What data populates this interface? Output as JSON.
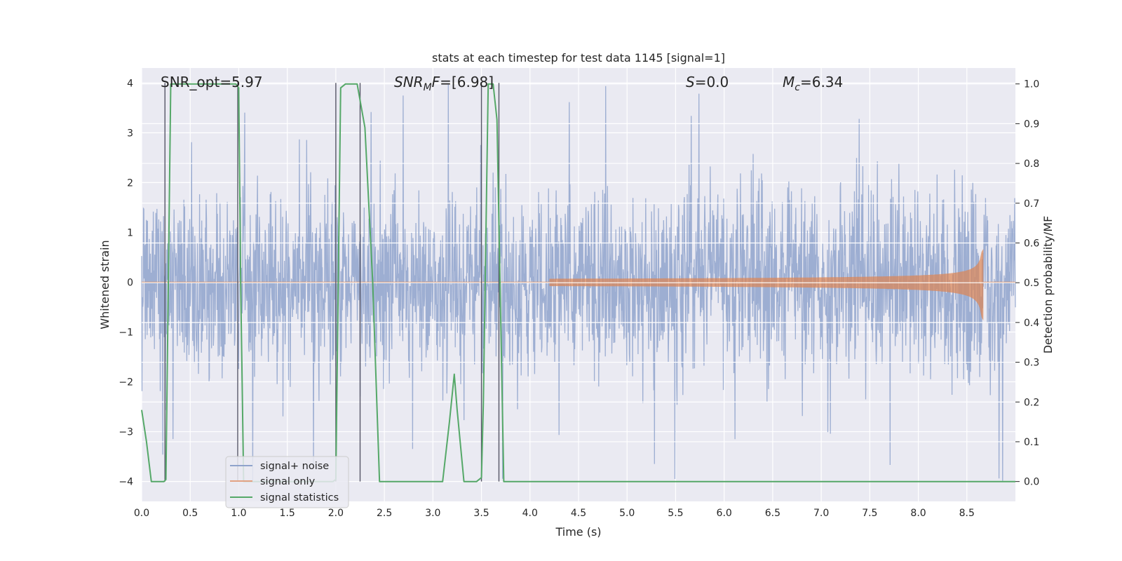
{
  "chart_data": {
    "type": "line",
    "title": "stats at each timestep for test data 1145 [signal=1]",
    "xlabel": "Time (s)",
    "ylabel": "Whitened strain",
    "ylabel_right": "Detection probability/MF",
    "xlim": [
      0.0,
      9.0
    ],
    "ylim": [
      -4.4,
      4.3
    ],
    "ylim_right": [
      -0.05,
      1.04
    ],
    "x_ticks": [
      "0.0",
      "0.5",
      "1.0",
      "1.5",
      "2.0",
      "2.5",
      "3.0",
      "3.5",
      "4.0",
      "4.5",
      "5.0",
      "5.5",
      "6.0",
      "6.5",
      "7.0",
      "7.5",
      "8.0",
      "8.5"
    ],
    "y_ticks": [
      "4",
      "3",
      "2",
      "1",
      "0",
      "−1",
      "−2",
      "−3",
      "−4"
    ],
    "y_ticks_right": [
      "1.0",
      "0.9",
      "0.8",
      "0.7",
      "0.6",
      "0.5",
      "0.4",
      "0.3",
      "0.2",
      "0.1",
      "0.0"
    ],
    "grid": true,
    "legend_position": "lower-left",
    "annotations": {
      "snr_opt": "SNR_opt=5.97",
      "snr_mf_main": "SNR",
      "snr_mf_sub": "M",
      "snr_mf_tail": "F",
      "snr_mf_value": "=[6.98]",
      "s_symbol": "S",
      "s_value": "=0.0",
      "mc_main": "M",
      "mc_sub": "c",
      "mc_value": "=6.34"
    },
    "series": [
      {
        "name": "signal+ noise",
        "color": "#8fa3cc",
        "kind": "noise",
        "noise_sigma": 0.9,
        "peak_max": 4.0,
        "peak_min": -4.0
      },
      {
        "name": "signal only",
        "color": "#dd8452",
        "kind": "chirp",
        "start_time": 4.2,
        "merger_time": 8.67,
        "peak_amplitude_positive": 0.65,
        "peak_amplitude_negative": -0.75
      },
      {
        "name": "signal statistics",
        "color": "#55a868",
        "axis": "right",
        "x": [
          0.0,
          0.05,
          0.1,
          0.2,
          0.23,
          0.25,
          0.3,
          0.35,
          0.5,
          0.7,
          0.97,
          1.0,
          1.02,
          1.05,
          1.5,
          1.95,
          1.97,
          2.0,
          2.05,
          2.1,
          2.22,
          2.3,
          2.38,
          2.45,
          2.5,
          2.8,
          3.1,
          3.17,
          3.22,
          3.25,
          3.32,
          3.45,
          3.5,
          3.52,
          3.57,
          3.62,
          3.66,
          3.73,
          3.8,
          4.5,
          6.0,
          8.0,
          9.0
        ],
        "values": [
          0.18,
          0.1,
          0.0,
          0.0,
          0.0,
          0.005,
          1.0,
          1.0,
          1.0,
          1.0,
          1.0,
          0.99,
          0.5,
          0.0,
          0.0,
          0.0,
          0.0,
          0.005,
          0.99,
          1.0,
          1.0,
          0.89,
          0.5,
          0.0,
          0.0,
          0.0,
          0.0,
          0.15,
          0.27,
          0.18,
          0.0,
          0.0,
          0.01,
          0.2,
          1.0,
          1.0,
          0.91,
          0.0,
          0.0,
          0.0,
          0.0,
          0.0,
          0.0
        ]
      }
    ],
    "vertical_markers": [
      {
        "x": 0.24,
        "y_bottom_right": 0.0,
        "y_top_left": 4.0
      },
      {
        "x": 0.99,
        "y_bottom_right": 0.0,
        "y_top_left": 4.0
      },
      {
        "x": 2.0,
        "y_bottom_right": 0.0,
        "y_top_left": 4.0
      },
      {
        "x": 2.25,
        "y_bottom_right": 0.0,
        "y_top_left": 4.0
      },
      {
        "x": 3.5,
        "y_bottom_right": 0.0,
        "y_top_left": 4.0
      },
      {
        "x": 3.68,
        "y_bottom_right": 0.0,
        "y_top_left": 4.0
      }
    ],
    "legend": [
      "signal+ noise",
      "signal only",
      "signal statistics"
    ]
  }
}
